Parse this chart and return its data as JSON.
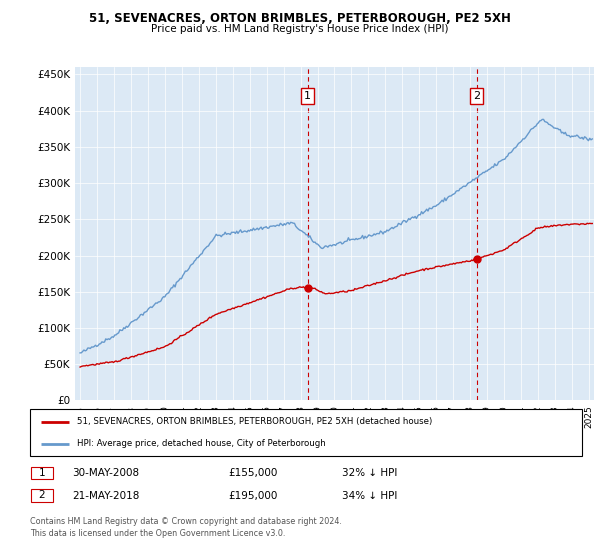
{
  "title1": "51, SEVENACRES, ORTON BRIMBLES, PETERBOROUGH, PE2 5XH",
  "title2": "Price paid vs. HM Land Registry's House Price Index (HPI)",
  "legend_line1": "51, SEVENACRES, ORTON BRIMBLES, PETERBOROUGH, PE2 5XH (detached house)",
  "legend_line2": "HPI: Average price, detached house, City of Peterborough",
  "ann1_label": "1",
  "ann1_date": "30-MAY-2008",
  "ann1_price": "£155,000",
  "ann1_hpi": "32% ↓ HPI",
  "ann2_label": "2",
  "ann2_date": "21-MAY-2018",
  "ann2_price": "£195,000",
  "ann2_hpi": "34% ↓ HPI",
  "footer_line1": "Contains HM Land Registry data © Crown copyright and database right 2024.",
  "footer_line2": "This data is licensed under the Open Government Licence v3.0.",
  "red_color": "#cc0000",
  "blue_color": "#6699cc",
  "bg_color": "#dce9f5",
  "ylim": [
    0,
    460000
  ],
  "yticks": [
    0,
    50000,
    100000,
    150000,
    200000,
    250000,
    300000,
    350000,
    400000,
    450000
  ],
  "vline1_x": 2008.42,
  "vline2_x": 2018.38,
  "marker1_x": 2008.42,
  "marker1_y": 155000,
  "marker2_x": 2018.38,
  "marker2_y": 195000,
  "xmin": 1994.7,
  "xmax": 2025.3
}
